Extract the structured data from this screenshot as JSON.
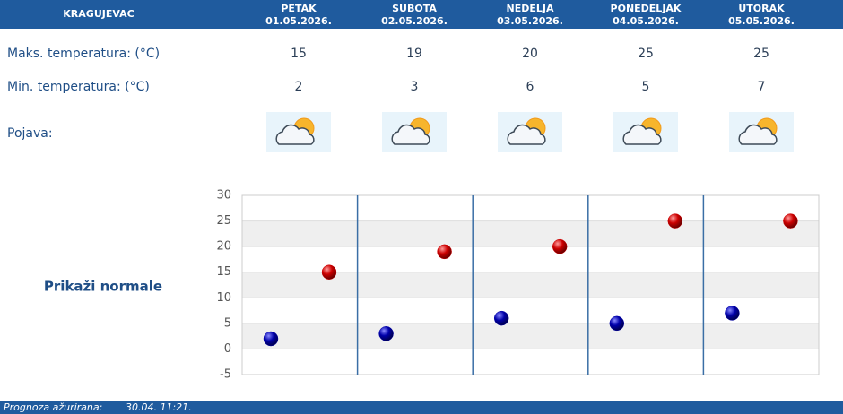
{
  "header": {
    "city": "KRAGUJEVAC"
  },
  "rows": {
    "max_label": "Maks. temperatura: (°C)",
    "min_label": "Min. temperatura: (°C)",
    "phenomenon_label": "Pojava:"
  },
  "days": [
    {
      "name": "PETAK",
      "date": "01.05.2026.",
      "max": 15,
      "min": 2
    },
    {
      "name": "SUBOTA",
      "date": "02.05.2026.",
      "max": 19,
      "min": 3
    },
    {
      "name": "NEDELJA",
      "date": "03.05.2026.",
      "max": 20,
      "min": 6
    },
    {
      "name": "PONEDELJAK",
      "date": "04.05.2026.",
      "max": 25,
      "min": 5
    },
    {
      "name": "UTORAK",
      "date": "05.05.2026.",
      "max": 25,
      "min": 7
    }
  ],
  "chart": {
    "ylim": [
      -5,
      30
    ],
    "yticks": [
      -5,
      0,
      5,
      10,
      15,
      20,
      25,
      30
    ],
    "max_color": "#cc0000",
    "min_color": "#0000aa",
    "normals_link": "Prikaži normale"
  },
  "footer": {
    "label": "Prognoza ažurirana:",
    "value": "30.04. 11:21."
  }
}
